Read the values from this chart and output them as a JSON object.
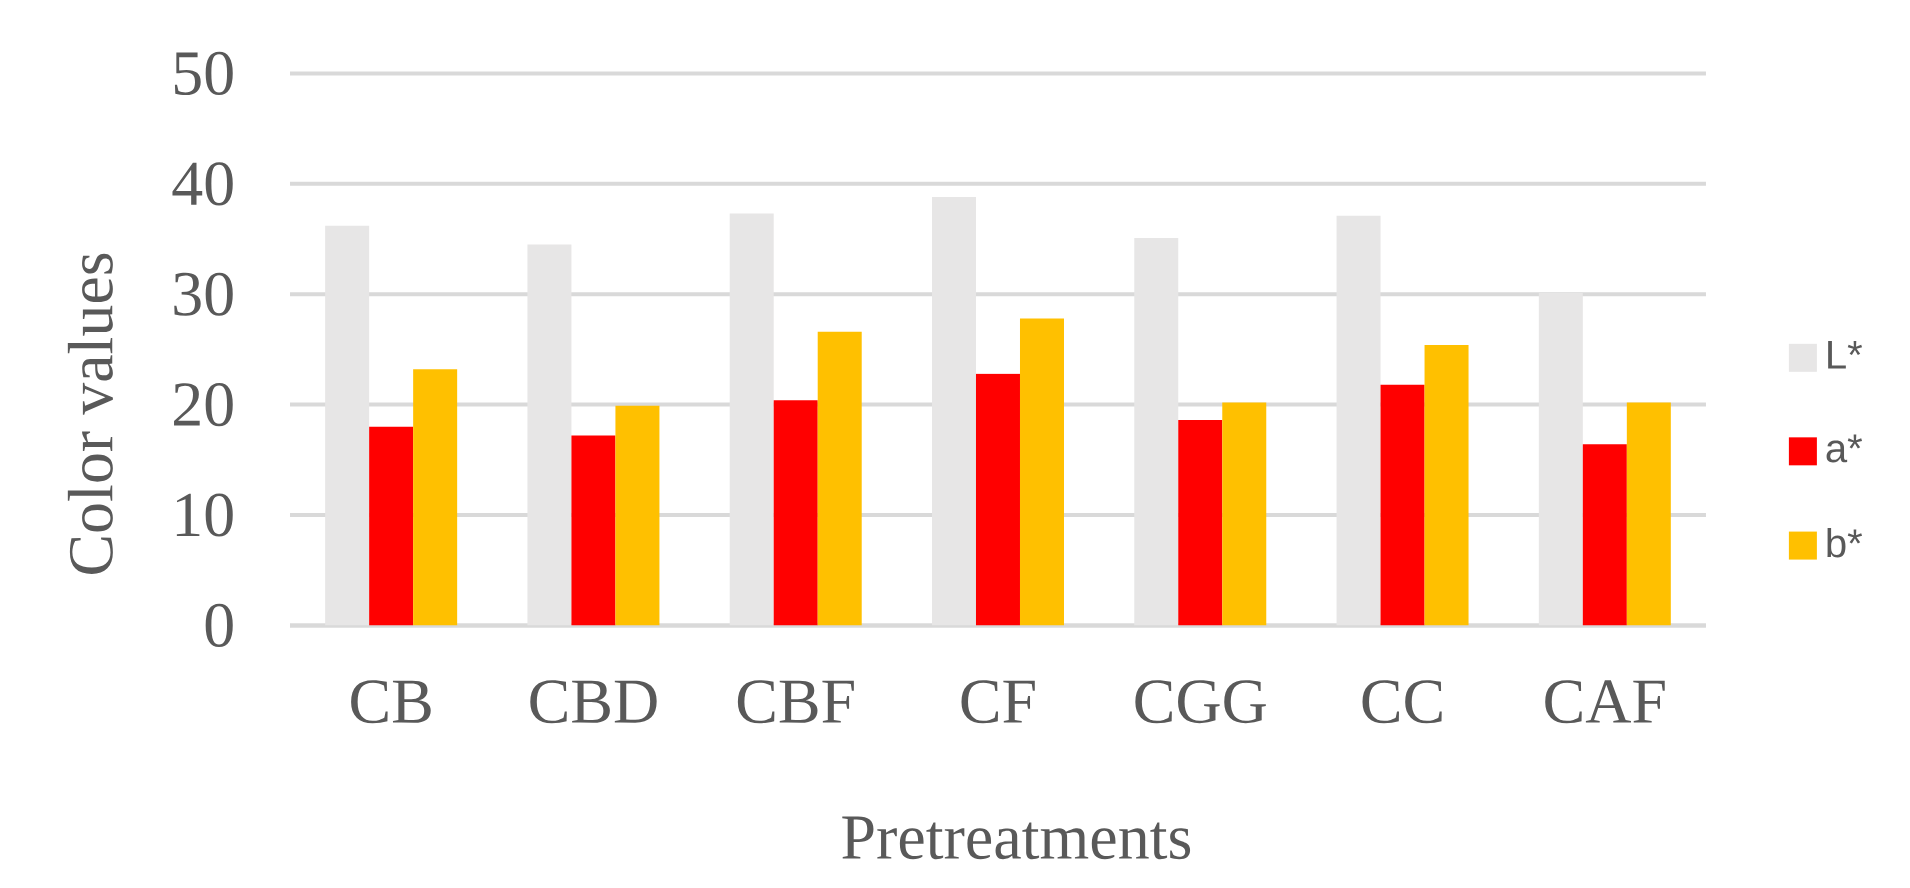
{
  "chart_data": {
    "type": "bar",
    "xlabel": "Pretreatments",
    "ylabel": "Color values",
    "categories": [
      "CB",
      "CBD",
      "CBF",
      "CF",
      "CGG",
      "CC",
      "CAF"
    ],
    "series": [
      {
        "name": "L*",
        "color": "#e7e6e6",
        "values": [
          36.2,
          34.5,
          37.3,
          38.8,
          35.1,
          37.1,
          30.1
        ]
      },
      {
        "name": "a*",
        "color": "#ff0000",
        "values": [
          18.0,
          17.2,
          20.4,
          22.8,
          18.6,
          21.8,
          16.4
        ]
      },
      {
        "name": "b*",
        "color": "#ffc000",
        "values": [
          23.2,
          19.9,
          26.6,
          27.8,
          20.2,
          25.4,
          20.2
        ]
      }
    ],
    "ylim": [
      0,
      50
    ],
    "yticks": [
      0,
      10,
      20,
      30,
      40,
      50
    ],
    "grid": "y",
    "legend": "right"
  }
}
